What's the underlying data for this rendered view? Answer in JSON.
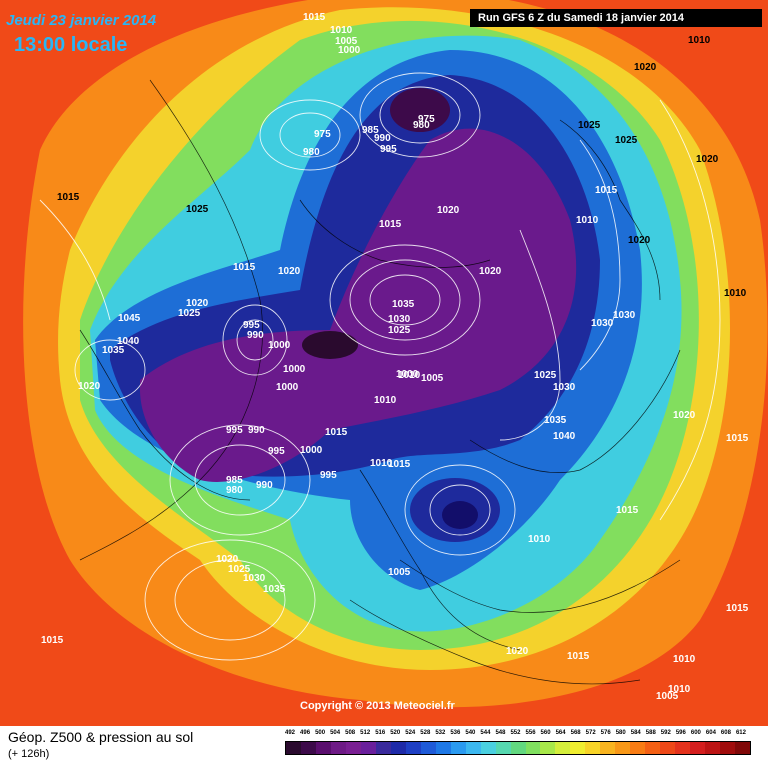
{
  "header": {
    "date": "Jeudi 23 janvier 2014",
    "time": "13:00 locale",
    "run": "Run GFS 6 Z du Samedi 18 janvier 2014"
  },
  "footer": {
    "copyright": "Copyright © 2013 Meteociel.fr",
    "parameter": "Géop. Z500 & pression au sol",
    "lead_time": "(+ 126h)"
  },
  "legend": {
    "ticks": [
      "492",
      "496",
      "500",
      "504",
      "508",
      "512",
      "516",
      "520",
      "524",
      "528",
      "532",
      "536",
      "540",
      "544",
      "548",
      "552",
      "556",
      "560",
      "564",
      "568",
      "572",
      "576",
      "580",
      "584",
      "588",
      "592",
      "596",
      "600",
      "604",
      "608",
      "612"
    ],
    "colors": [
      "#2a0a2e",
      "#3d0a4a",
      "#5a0e6e",
      "#6e1a86",
      "#7a1f93",
      "#6a1f9c",
      "#3a2a9c",
      "#1e2aa8",
      "#1e3fc4",
      "#1e5ad8",
      "#1e78e6",
      "#2a9af0",
      "#3cb8f0",
      "#4ad0e0",
      "#56d8b0",
      "#62d880",
      "#80e060",
      "#a8e84a",
      "#d4ee3c",
      "#f0ee30",
      "#f8d428",
      "#f8b420",
      "#f89818",
      "#f87c14",
      "#f46014",
      "#ee4818",
      "#e4321c",
      "#d41e1e",
      "#bc1414",
      "#a00c0c",
      "#800808"
    ]
  },
  "pressure_labels": [
    "1015",
    "1010",
    "1005",
    "1000",
    "1010",
    "975",
    "985",
    "990",
    "995",
    "980",
    "975",
    "980",
    "1020",
    "1025",
    "1025",
    "1015",
    "1010",
    "1015",
    "1020",
    "1020",
    "1015",
    "1025",
    "1015",
    "1035",
    "1030",
    "1025",
    "1020",
    "1020",
    "1030",
    "1030",
    "1020",
    "1010",
    "1045",
    "1025",
    "1020",
    "1040",
    "1035",
    "1020",
    "995",
    "990",
    "1000",
    "1000",
    "1000",
    "1010",
    "1000",
    "1005",
    "1035",
    "1040",
    "1025",
    "1030",
    "1010",
    "1015",
    "1000",
    "995",
    "990",
    "995",
    "995",
    "985",
    "980",
    "990",
    "1010",
    "1015",
    "1015",
    "1020",
    "1005",
    "1010",
    "1015",
    "1020",
    "1025",
    "1030",
    "1035",
    "1015",
    "1020",
    "1015",
    "1015",
    "1010",
    "1010",
    "1005"
  ]
}
